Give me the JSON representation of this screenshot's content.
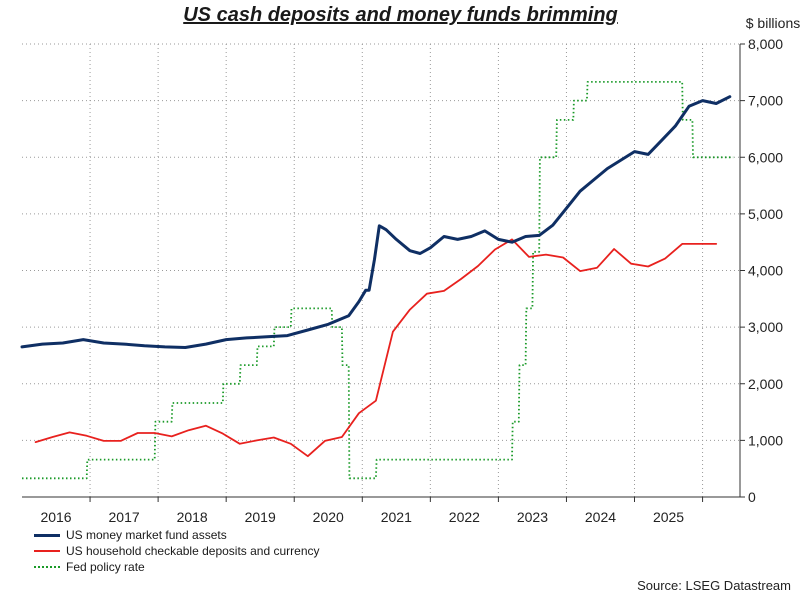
{
  "title": "US cash deposits and money funds brimming",
  "source": "Source: LSEG Datastream",
  "chart_data": {
    "type": "line",
    "y_unit_label": "$ billions",
    "y_axis_position": "right",
    "ylim": [
      0,
      8000
    ],
    "y_ticks": [
      0,
      1000,
      2000,
      3000,
      4000,
      5000,
      6000,
      7000,
      8000
    ],
    "y_tick_labels": [
      "0",
      "1,000",
      "2,000",
      "3,000",
      "4,000",
      "5,000",
      "6,000",
      "7,000",
      "8,000"
    ],
    "xlim": [
      2015.0,
      2025.55
    ],
    "x_tick_labels": [
      "2016",
      "2017",
      "2018",
      "2019",
      "2020",
      "2021",
      "2022",
      "2023",
      "2024",
      "2025"
    ],
    "grid": "horizontal-dotted",
    "legend_position": "bottom-left",
    "series": [
      {
        "name": "US money market fund assets",
        "color": "#0f2f64",
        "style": "solid",
        "x": [
          2015.0,
          2015.3,
          2015.6,
          2015.9,
          2016.2,
          2016.5,
          2016.8,
          2017.1,
          2017.4,
          2017.7,
          2018.0,
          2018.3,
          2018.6,
          2018.9,
          2019.2,
          2019.5,
          2019.8,
          2019.95,
          2020.05,
          2020.1,
          2020.18,
          2020.25,
          2020.35,
          2020.5,
          2020.7,
          2020.85,
          2021.0,
          2021.2,
          2021.4,
          2021.6,
          2021.8,
          2022.0,
          2022.2,
          2022.4,
          2022.6,
          2022.8,
          2023.0,
          2023.2,
          2023.4,
          2023.6,
          2023.8,
          2024.0,
          2024.2,
          2024.4,
          2024.6,
          2024.8,
          2025.0,
          2025.2,
          2025.4
        ],
        "y": [
          2650,
          2700,
          2720,
          2780,
          2720,
          2700,
          2670,
          2650,
          2640,
          2700,
          2780,
          2810,
          2830,
          2850,
          2950,
          3050,
          3200,
          3450,
          3650,
          3650,
          4200,
          4790,
          4720,
          4550,
          4350,
          4300,
          4400,
          4600,
          4550,
          4600,
          4700,
          4550,
          4500,
          4600,
          4620,
          4800,
          5100,
          5400,
          5600,
          5800,
          5950,
          6100,
          6050,
          6300,
          6550,
          6900,
          7000,
          6950,
          7070
        ]
      },
      {
        "name": "US household checkable deposits and currency",
        "color": "#e8211e",
        "style": "solid",
        "x": [
          2015.2,
          2015.45,
          2015.7,
          2015.95,
          2016.2,
          2016.45,
          2016.7,
          2016.95,
          2017.2,
          2017.45,
          2017.7,
          2017.95,
          2018.2,
          2018.45,
          2018.7,
          2018.95,
          2019.2,
          2019.45,
          2019.7,
          2019.95,
          2020.2,
          2020.45,
          2020.7,
          2020.95,
          2021.2,
          2021.45,
          2021.7,
          2021.95,
          2022.2,
          2022.45,
          2022.7,
          2022.95,
          2023.2,
          2023.45,
          2023.7,
          2023.95,
          2024.2,
          2024.45,
          2024.7,
          2024.95,
          2025.2
        ],
        "y": [
          970,
          1060,
          1140,
          1080,
          990,
          990,
          1130,
          1130,
          1070,
          1180,
          1260,
          1120,
          940,
          1000,
          1050,
          940,
          720,
          990,
          1060,
          1480,
          1700,
          2920,
          3310,
          3590,
          3640,
          3850,
          4080,
          4370,
          4550,
          4240,
          4280,
          4230,
          3990,
          4050,
          4380,
          4120,
          4070,
          4210,
          4470,
          4470,
          4470
        ]
      },
      {
        "name": "Fed policy rate",
        "color": "#1a9a28",
        "style": "dotted",
        "x": [
          2015.0,
          2015.95,
          2015.96,
          2016.95,
          2016.96,
          2017.2,
          2017.21,
          2017.45,
          2017.46,
          2017.95,
          2017.96,
          2018.2,
          2018.21,
          2018.45,
          2018.46,
          2018.7,
          2018.71,
          2018.95,
          2018.96,
          2019.55,
          2019.56,
          2019.7,
          2019.71,
          2019.8,
          2019.81,
          2020.2,
          2020.21,
          2022.2,
          2022.21,
          2022.3,
          2022.31,
          2022.4,
          2022.41,
          2022.5,
          2022.51,
          2022.6,
          2022.61,
          2022.85,
          2022.86,
          2023.1,
          2023.11,
          2023.3,
          2023.31,
          2023.55,
          2023.56,
          2024.7,
          2024.71,
          2024.85,
          2024.86,
          2025.45
        ],
        "y": [
          330,
          330,
          660,
          660,
          1330,
          1330,
          1660,
          1660,
          1660,
          1660,
          2000,
          2000,
          2330,
          2330,
          2660,
          2660,
          3000,
          3000,
          3330,
          3330,
          3000,
          3000,
          2330,
          2330,
          330,
          330,
          660,
          660,
          1330,
          1330,
          2330,
          2330,
          3330,
          3330,
          4330,
          4330,
          6000,
          6000,
          6660,
          6660,
          7000,
          7000,
          7330,
          7330,
          7330,
          7330,
          6660,
          6660,
          6000,
          6000
        ]
      }
    ]
  }
}
